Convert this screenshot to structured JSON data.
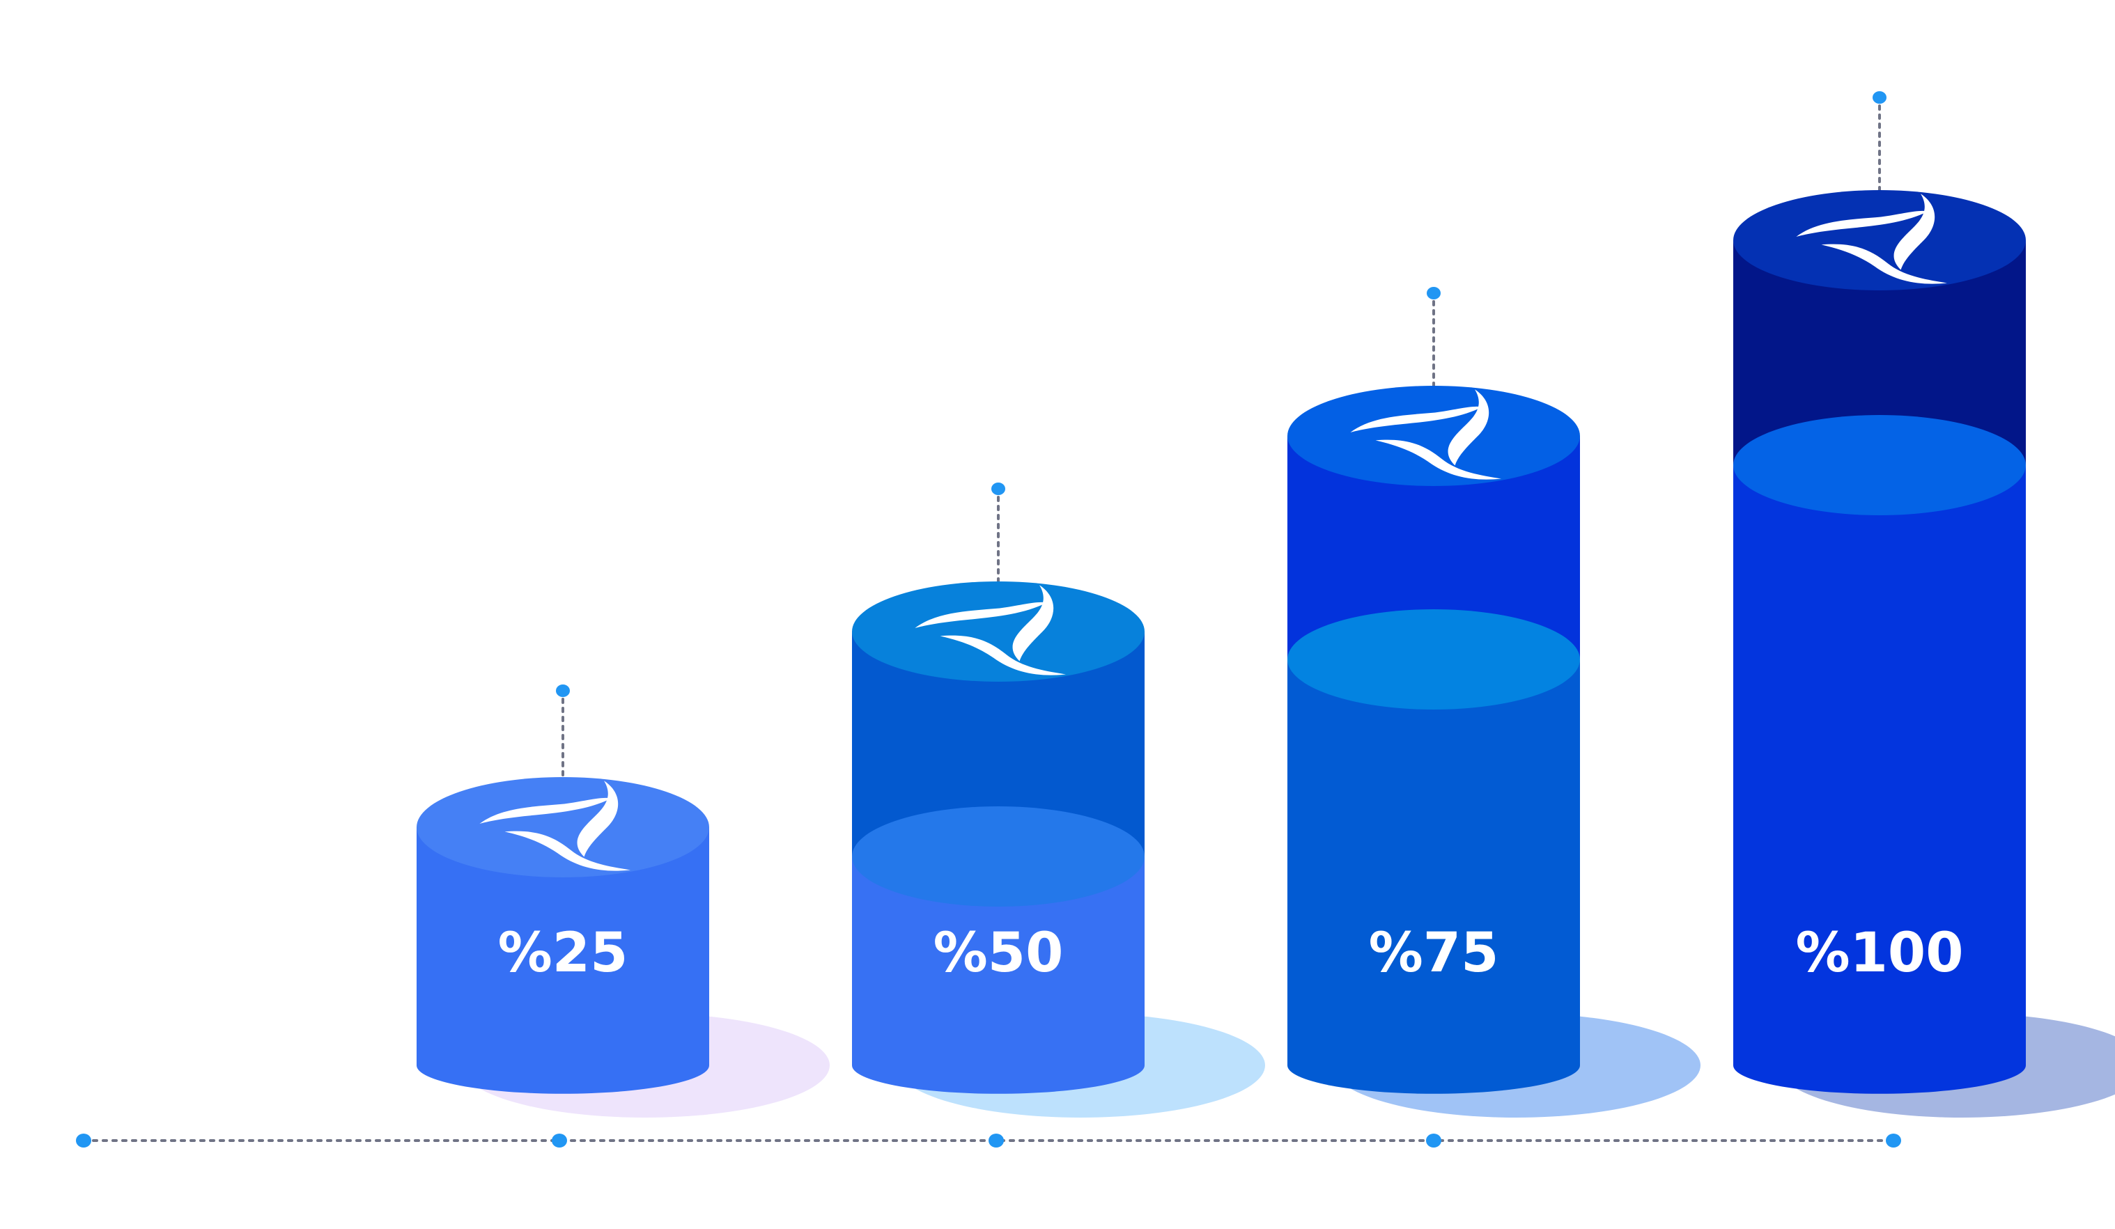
{
  "chart_data": {
    "type": "bar",
    "categories": [
      "%25",
      "%50",
      "%75",
      "%100"
    ],
    "values": [
      25,
      50,
      75,
      100
    ],
    "title": "",
    "xlabel": "",
    "ylabel": "",
    "ylim": [
      0,
      100
    ],
    "grid": false,
    "legend": "none",
    "style": "3d-cylinders",
    "icon": "swirl-logo-icon",
    "colors": {
      "bars": [
        {
          "body": "#3670f4",
          "top": "#4580f5",
          "upper_body": "#3670f4",
          "upper_top": "#4580f5",
          "shadow": "#eee4fc"
        },
        {
          "body": "#3771f3",
          "top": "#2478ea",
          "upper_body": "#0359cf",
          "upper_top": "#0781db",
          "shadow": "#bde1fd"
        },
        {
          "body": "#025bd3",
          "top": "#0383e1",
          "upper_body": "#0333dc",
          "upper_top": "#0360e5",
          "shadow": "#a0c3f6"
        },
        {
          "body": "#0335de",
          "top": "#0463e6",
          "upper_body": "#021689",
          "upper_top": "#0431b3",
          "shadow": "#a5b6e2"
        }
      ],
      "guide": "#6f7385",
      "dot": "#2196f3"
    }
  }
}
